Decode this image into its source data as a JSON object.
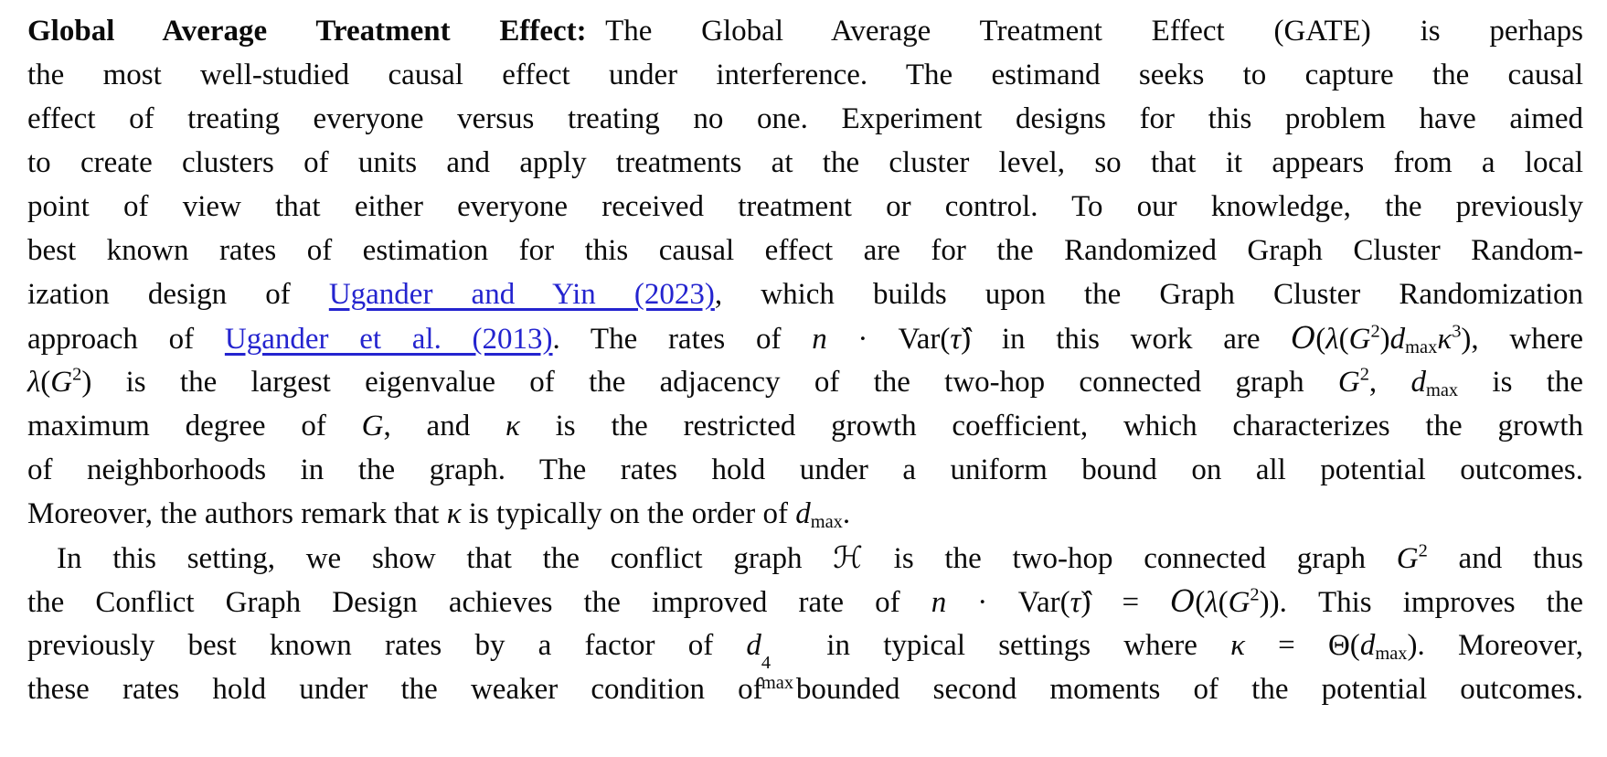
{
  "styles": {
    "background": "#ffffff",
    "text_color": "#0a0a0a",
    "link_color": "#2424cf"
  },
  "document": {
    "lines": [
      {
        "indent": false,
        "justify": true,
        "segments": [
          [
            "b",
            "Global Average Treatment Effect:"
          ],
          [
            "gap"
          ],
          [
            "r",
            "The Global Average Treatment Effect (GATE) is perhaps"
          ]
        ]
      },
      {
        "indent": false,
        "justify": true,
        "segments": [
          [
            "r",
            "the most well-studied causal effect under interference. The estimand seeks to capture the causal"
          ]
        ]
      },
      {
        "indent": false,
        "justify": true,
        "segments": [
          [
            "r",
            "effect of treating everyone versus treating no one. Experiment designs for this problem have aimed"
          ]
        ]
      },
      {
        "indent": false,
        "justify": true,
        "segments": [
          [
            "r",
            "to create clusters of units and apply treatments at the cluster level, so that it appears from a local"
          ]
        ]
      },
      {
        "indent": false,
        "justify": true,
        "segments": [
          [
            "r",
            "point of view that either everyone received treatment or control. To our knowledge, the previously"
          ]
        ]
      },
      {
        "indent": false,
        "justify": true,
        "segments": [
          [
            "r",
            "best known rates of estimation for this causal effect are for the Randomized Graph Cluster Random-"
          ]
        ]
      },
      {
        "indent": false,
        "justify": true,
        "segments": [
          [
            "r",
            "ization design of "
          ],
          [
            "l",
            "Ugander and Yin (2023)",
            "ugander-yin-2023"
          ],
          [
            "r",
            ", which builds upon the Graph Cluster Randomization"
          ]
        ]
      },
      {
        "indent": false,
        "justify": true,
        "segments": [
          [
            "r",
            "approach of "
          ],
          [
            "l",
            "Ugander et al. (2013)",
            "ugander-2013"
          ],
          [
            "r",
            ". The rates of "
          ],
          [
            "i",
            "n"
          ],
          [
            "r",
            " · Var("
          ],
          [
            "i",
            "τ̂"
          ],
          [
            "r",
            ") in this work are "
          ],
          [
            "cal",
            "O"
          ],
          [
            "r",
            "("
          ],
          [
            "i",
            "λ"
          ],
          [
            "r",
            "("
          ],
          [
            "i",
            "G"
          ],
          [
            "sup",
            "2"
          ],
          [
            "r",
            ")"
          ],
          [
            "i",
            "d"
          ],
          [
            "sub",
            "max"
          ],
          [
            "i",
            "κ"
          ],
          [
            "sup",
            "3"
          ],
          [
            "r",
            "), where"
          ]
        ]
      },
      {
        "indent": false,
        "justify": true,
        "segments": [
          [
            "i",
            "λ"
          ],
          [
            "r",
            "("
          ],
          [
            "i",
            "G"
          ],
          [
            "sup",
            "2"
          ],
          [
            "r",
            ") is the largest eigenvalue of the adjacency of the two-hop connected graph "
          ],
          [
            "i",
            "G"
          ],
          [
            "sup",
            "2"
          ],
          [
            "r",
            ", "
          ],
          [
            "i",
            "d"
          ],
          [
            "sub",
            "max"
          ],
          [
            "r",
            " is the"
          ]
        ]
      },
      {
        "indent": false,
        "justify": true,
        "segments": [
          [
            "r",
            "maximum degree of "
          ],
          [
            "i",
            "G"
          ],
          [
            "r",
            ", and "
          ],
          [
            "i",
            "κ"
          ],
          [
            "r",
            " is the restricted growth coefficient, which characterizes the growth"
          ]
        ]
      },
      {
        "indent": false,
        "justify": true,
        "segments": [
          [
            "r",
            "of neighborhoods in the graph. The rates hold under a uniform bound on all potential outcomes."
          ]
        ]
      },
      {
        "indent": false,
        "justify": false,
        "segments": [
          [
            "r",
            "Moreover, the authors remark that "
          ],
          [
            "i",
            "κ"
          ],
          [
            "r",
            " is typically on the order of "
          ],
          [
            "i",
            "d"
          ],
          [
            "sub",
            "max"
          ],
          [
            "r",
            "."
          ]
        ]
      },
      {
        "indent": true,
        "justify": true,
        "segments": [
          [
            "r",
            "In this setting, we show that the conflict graph "
          ],
          [
            "cal",
            "ℋ"
          ],
          [
            "r",
            " is the two-hop connected graph "
          ],
          [
            "i",
            "G"
          ],
          [
            "sup",
            "2"
          ],
          [
            "r",
            " and thus"
          ]
        ]
      },
      {
        "indent": false,
        "justify": true,
        "segments": [
          [
            "r",
            "the Conflict Graph Design achieves the improved rate of "
          ],
          [
            "i",
            "n"
          ],
          [
            "r",
            " · Var("
          ],
          [
            "i",
            "τ̂"
          ],
          [
            "r",
            ") = "
          ],
          [
            "cal",
            "O"
          ],
          [
            "r",
            "("
          ],
          [
            "i",
            "λ"
          ],
          [
            "r",
            "("
          ],
          [
            "i",
            "G"
          ],
          [
            "sup",
            "2"
          ],
          [
            "r",
            ")). This improves the"
          ]
        ]
      },
      {
        "indent": false,
        "justify": true,
        "segments": [
          [
            "r",
            "previously best known rates by a factor of "
          ],
          [
            "i",
            "d"
          ],
          [
            "ss",
            "4",
            "max"
          ],
          [
            "r",
            " in typical settings where "
          ],
          [
            "i",
            "κ"
          ],
          [
            "r",
            " = Θ("
          ],
          [
            "i",
            "d"
          ],
          [
            "sub",
            "max"
          ],
          [
            "r",
            "). Moreover,"
          ]
        ]
      },
      {
        "indent": false,
        "justify": true,
        "segments": [
          [
            "r",
            "these rates hold under the weaker condition of bounded second moments of the potential outcomes."
          ]
        ]
      }
    ]
  }
}
